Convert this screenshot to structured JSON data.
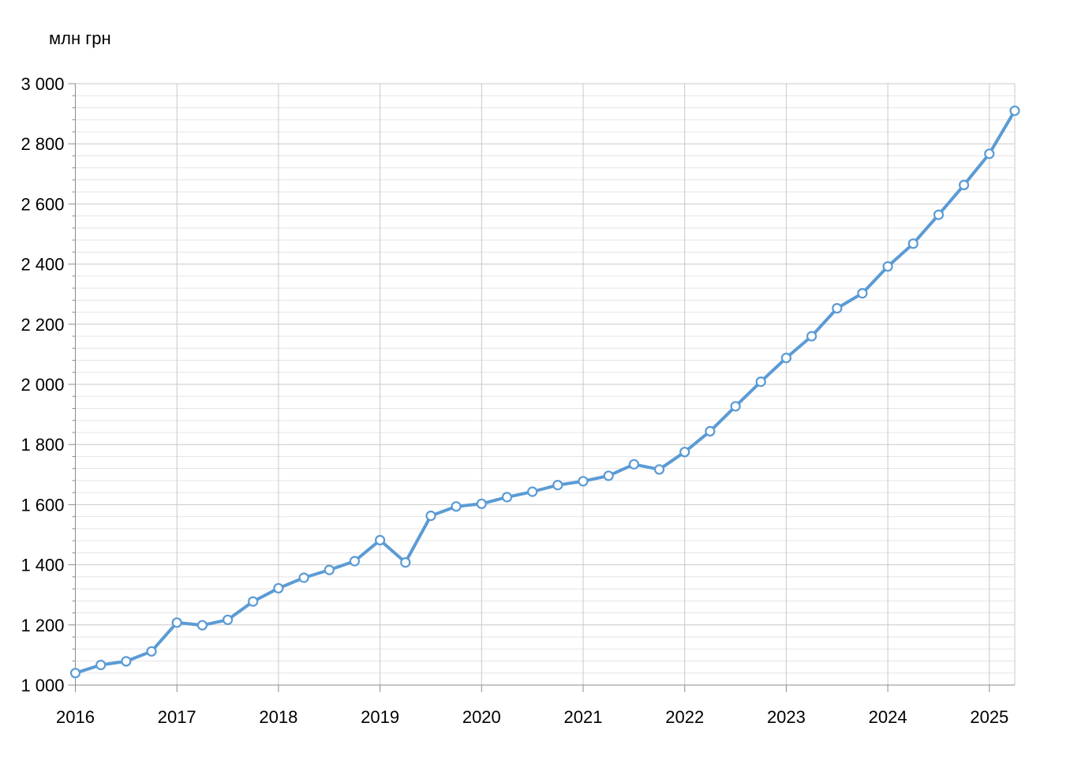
{
  "chart_data": {
    "type": "line",
    "title": "",
    "unit_label": "млн грн",
    "legend": "none",
    "grid": "horizontal major+minor on, vertical yearly on",
    "x_axis": {
      "tick_labels": [
        "2016",
        "2017",
        "2018",
        "2019",
        "2020",
        "2021",
        "2022",
        "2023",
        "2024",
        "2025"
      ],
      "start": 2016.0,
      "end": 2025.25,
      "points_per_year": 4
    },
    "y_axis": {
      "tick_labels": [
        "1 000",
        "1 200",
        "1 400",
        "1 600",
        "1 800",
        "2 000",
        "2 200",
        "2 400",
        "2 600",
        "2 800",
        "3 000"
      ],
      "min": 1000,
      "max": 3000,
      "major_step": 200,
      "minor_step": 40
    },
    "series": [
      {
        "name": "млн грн",
        "color": "#5B9BD5",
        "marker": "circle-white-fill",
        "quarters": [
          "2016 Q1",
          "2016 Q2",
          "2016 Q3",
          "2016 Q4",
          "2017 Q1",
          "2017 Q2",
          "2017 Q3",
          "2017 Q4",
          "2018 Q1",
          "2018 Q2",
          "2018 Q3",
          "2018 Q4",
          "2019 Q1",
          "2019 Q2",
          "2019 Q3",
          "2019 Q4",
          "2020 Q1",
          "2020 Q2",
          "2020 Q3",
          "2020 Q4",
          "2021 Q1",
          "2021 Q2",
          "2021 Q3",
          "2021 Q4",
          "2022 Q1",
          "2022 Q2",
          "2022 Q3",
          "2022 Q4",
          "2023 Q1",
          "2023 Q2",
          "2023 Q3",
          "2023 Q4",
          "2024 Q1",
          "2024 Q2",
          "2024 Q3",
          "2024 Q4",
          "2025 Q1",
          "2025 Q2"
        ],
        "values": [
          1040,
          1067,
          1079,
          1112,
          1208,
          1199,
          1217,
          1278,
          1322,
          1357,
          1383,
          1412,
          1482,
          1408,
          1563,
          1594,
          1603,
          1625,
          1643,
          1665,
          1678,
          1696,
          1734,
          1717,
          1775,
          1844,
          1927,
          2009,
          2088,
          2160,
          2253,
          2303,
          2392,
          2468,
          2564,
          2663,
          2767,
          2910
        ]
      }
    ],
    "colors": {
      "line": "#5B9BD5",
      "marker_fill": "#FFFFFF",
      "grid_major": "#C9C9C9",
      "grid_minor": "#E5E5E5",
      "axis": "#8C8C8C",
      "text": "#000000",
      "background": "#FFFFFF"
    }
  }
}
